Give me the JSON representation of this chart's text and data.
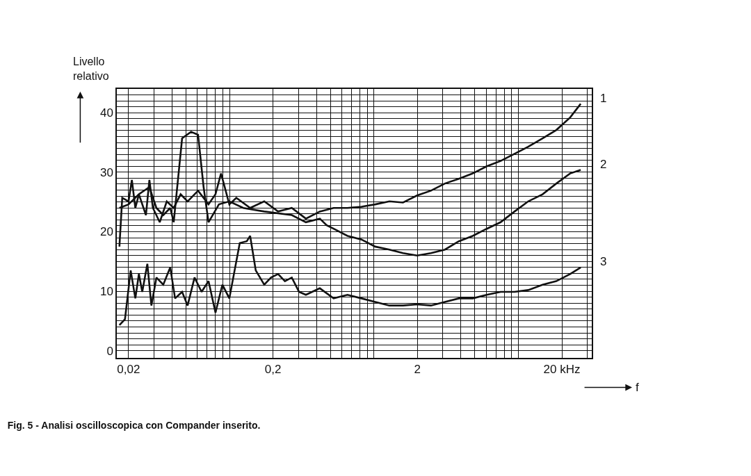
{
  "chart_data": {
    "type": "line",
    "title": "Fig. 5 - Analisi oscilloscopica con Compander inserito.",
    "xlabel": "f",
    "ylabel": "Livello relativo",
    "log": "x",
    "grid": true,
    "xlim": [
      0.0166,
      32.2
    ],
    "ylim": [
      -1.2,
      44
    ],
    "xticks": [
      {
        "value": 0.02,
        "label": "0,02"
      },
      {
        "value": 0.03,
        "label": null
      },
      {
        "value": 0.04,
        "label": null
      },
      {
        "value": 0.05,
        "label": null
      },
      {
        "value": 0.06,
        "label": null
      },
      {
        "value": 0.07,
        "label": null
      },
      {
        "value": 0.08,
        "label": null
      },
      {
        "value": 0.09,
        "label": null
      },
      {
        "value": 0.1,
        "label": null
      },
      {
        "value": 0.2,
        "label": "0,2"
      },
      {
        "value": 0.3,
        "label": null
      },
      {
        "value": 0.4,
        "label": null
      },
      {
        "value": 0.5,
        "label": null
      },
      {
        "value": 0.6,
        "label": null
      },
      {
        "value": 0.7,
        "label": null
      },
      {
        "value": 0.8,
        "label": null
      },
      {
        "value": 0.9,
        "label": null
      },
      {
        "value": 1,
        "label": null
      },
      {
        "value": 2,
        "label": "2"
      },
      {
        "value": 3,
        "label": null
      },
      {
        "value": 4,
        "label": null
      },
      {
        "value": 5,
        "label": null
      },
      {
        "value": 6,
        "label": null
      },
      {
        "value": 7,
        "label": null
      },
      {
        "value": 8,
        "label": null
      },
      {
        "value": 9,
        "label": null
      },
      {
        "value": 10,
        "label": null
      },
      {
        "value": 20,
        "label": "20 kHz"
      },
      {
        "value": 30,
        "label": null
      }
    ],
    "yticks": [
      0,
      {
        "value": 1,
        "label": null
      },
      {
        "value": 2,
        "label": null
      },
      {
        "value": 3,
        "label": null
      },
      {
        "value": 4,
        "label": null
      },
      {
        "value": 5,
        "label": null
      },
      {
        "value": 6,
        "label": null
      },
      {
        "value": 7,
        "label": null
      },
      {
        "value": 8,
        "label": null
      },
      {
        "value": 9,
        "label": null
      },
      10,
      {
        "value": 11,
        "label": null
      },
      {
        "value": 12,
        "label": null
      },
      {
        "value": 13,
        "label": null
      },
      {
        "value": 14,
        "label": null
      },
      {
        "value": 15,
        "label": null
      },
      {
        "value": 16,
        "label": null
      },
      {
        "value": 17,
        "label": null
      },
      {
        "value": 18,
        "label": null
      },
      {
        "value": 19,
        "label": null
      },
      20,
      {
        "value": 21,
        "label": null
      },
      {
        "value": 22,
        "label": null
      },
      {
        "value": 23,
        "label": null
      },
      {
        "value": 24,
        "label": null
      },
      {
        "value": 25,
        "label": null
      },
      {
        "value": 26,
        "label": null
      },
      {
        "value": 27,
        "label": null
      },
      {
        "value": 28,
        "label": null
      },
      {
        "value": 29,
        "label": null
      },
      30,
      {
        "value": 31,
        "label": null
      },
      {
        "value": 32,
        "label": null
      },
      {
        "value": 33,
        "label": null
      },
      {
        "value": 34,
        "label": null
      },
      {
        "value": 35,
        "label": null
      },
      {
        "value": 36,
        "label": null
      },
      {
        "value": 37,
        "label": null
      },
      {
        "value": 38,
        "label": null
      },
      {
        "value": 39,
        "label": null
      },
      40,
      {
        "value": 41,
        "label": null
      },
      {
        "value": 42,
        "label": null
      },
      {
        "value": 43,
        "label": null
      },
      {
        "value": 44,
        "label": null
      }
    ],
    "series": [
      {
        "name": "1",
        "color": "#111111",
        "x": [
          0.0173,
          0.0181,
          0.02,
          0.0211,
          0.0223,
          0.0236,
          0.0264,
          0.0279,
          0.0295,
          0.0329,
          0.0368,
          0.0411,
          0.0459,
          0.0513,
          0.0606,
          0.0716,
          0.08,
          0.0874,
          0.0998,
          0.1115,
          0.139,
          0.174,
          0.217,
          0.27,
          0.338,
          0.422,
          0.526,
          0.656,
          0.82,
          1.02,
          1.28,
          1.59,
          1.99,
          2.48,
          3.1,
          3.87,
          4.83,
          6.04,
          7.53,
          9.4,
          11.7,
          14.7,
          18.3,
          22.8,
          27.0
        ],
        "values": [
          17.5,
          25.7,
          25.1,
          28.7,
          24.0,
          26.3,
          22.8,
          28.7,
          24.0,
          21.6,
          25.1,
          24.0,
          26.3,
          25.1,
          26.9,
          24.6,
          26.3,
          29.8,
          24.6,
          25.7,
          24.0,
          25.1,
          23.4,
          24.0,
          22.2,
          23.4,
          24.0,
          24.0,
          24.2,
          24.6,
          25.1,
          24.9,
          26.1,
          26.9,
          28.1,
          28.9,
          29.8,
          31.0,
          31.9,
          33.1,
          34.3,
          35.7,
          37.1,
          39.2,
          41.5
        ]
      },
      {
        "name": "2",
        "color": "#111111",
        "x": [
          0.0173,
          0.02,
          0.0236,
          0.0279,
          0.0312,
          0.0348,
          0.0389,
          0.0411,
          0.047,
          0.0542,
          0.0606,
          0.0662,
          0.0716,
          0.0845,
          0.0998,
          0.1245,
          0.174,
          0.27,
          0.338,
          0.422,
          0.471,
          0.526,
          0.656,
          0.82,
          1.02,
          1.28,
          1.59,
          1.99,
          2.48,
          3.1,
          3.87,
          4.83,
          6.04,
          7.53,
          9.4,
          11.7,
          14.7,
          18.3,
          22.8,
          27.0
        ],
        "values": [
          24.0,
          24.6,
          26.3,
          27.5,
          24.0,
          22.8,
          24.0,
          21.6,
          35.7,
          36.8,
          36.3,
          27.5,
          21.6,
          24.6,
          25.1,
          24.0,
          23.4,
          22.8,
          21.6,
          22.2,
          21.1,
          20.5,
          19.3,
          18.7,
          17.5,
          17.0,
          16.4,
          16.0,
          16.4,
          17.0,
          18.4,
          19.3,
          20.5,
          21.6,
          23.4,
          25.1,
          26.3,
          28.1,
          29.8,
          30.4
        ]
      },
      {
        "name": "3",
        "color": "#111111",
        "x": [
          0.0173,
          0.0189,
          0.0207,
          0.0223,
          0.0236,
          0.0249,
          0.027,
          0.0288,
          0.0312,
          0.0348,
          0.0389,
          0.042,
          0.047,
          0.0513,
          0.0573,
          0.0641,
          0.0716,
          0.08,
          0.0893,
          0.0998,
          0.1178,
          0.1317,
          0.139,
          0.152,
          0.174,
          0.194,
          0.217,
          0.242,
          0.27,
          0.303,
          0.338,
          0.422,
          0.526,
          0.656,
          0.82,
          1.02,
          1.28,
          1.59,
          1.99,
          2.48,
          3.1,
          3.87,
          4.83,
          6.04,
          7.53,
          9.4,
          11.7,
          14.7,
          18.3,
          22.8,
          27.0
        ],
        "values": [
          4.3,
          5.3,
          13.5,
          8.8,
          12.9,
          9.9,
          14.6,
          7.6,
          12.3,
          11.1,
          14.0,
          8.8,
          9.9,
          7.6,
          12.3,
          9.9,
          11.7,
          6.4,
          11.1,
          8.8,
          18.1,
          18.4,
          19.3,
          13.5,
          11.1,
          12.3,
          12.9,
          11.7,
          12.3,
          9.9,
          9.4,
          10.5,
          8.8,
          9.4,
          8.8,
          8.2,
          7.6,
          7.6,
          7.8,
          7.6,
          8.2,
          8.8,
          8.8,
          9.4,
          9.9,
          9.9,
          10.2,
          11.1,
          11.7,
          12.9,
          14.0
        ]
      }
    ]
  }
}
